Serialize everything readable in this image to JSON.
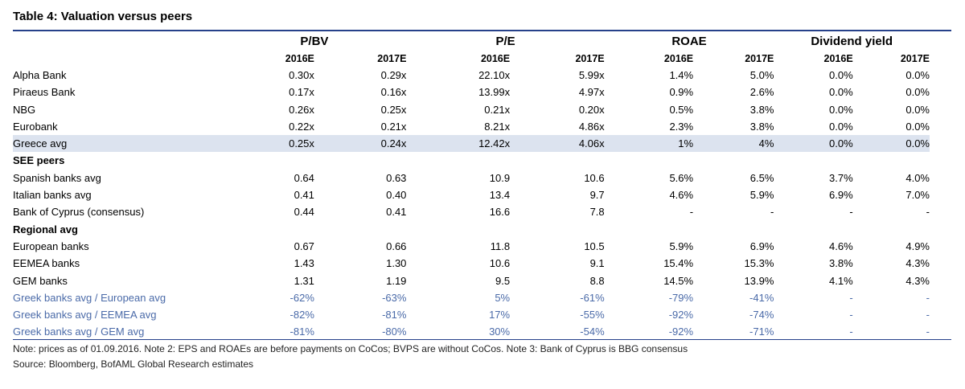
{
  "title": "Table 4: Valuation versus peers",
  "groups": [
    "P/BV",
    "P/E",
    "ROAE",
    "Dividend yield"
  ],
  "years": [
    "2016E",
    "2017E",
    "2016E",
    "2017E",
    "2016E",
    "2017E",
    "2016E",
    "2017E"
  ],
  "rows": [
    {
      "label": "Alpha Bank",
      "values": [
        "0.30x",
        "0.29x",
        "22.10x",
        "5.99x",
        "1.4%",
        "5.0%",
        "0.0%",
        "0.0%"
      ]
    },
    {
      "label": "Piraeus Bank",
      "values": [
        "0.17x",
        "0.16x",
        "13.99x",
        "4.97x",
        "0.9%",
        "2.6%",
        "0.0%",
        "0.0%"
      ]
    },
    {
      "label": "NBG",
      "values": [
        "0.26x",
        "0.25x",
        "0.21x",
        "0.20x",
        "0.5%",
        "3.8%",
        "0.0%",
        "0.0%"
      ]
    },
    {
      "label": "Eurobank",
      "values": [
        "0.22x",
        "0.21x",
        "8.21x",
        "4.86x",
        "2.3%",
        "3.8%",
        "0.0%",
        "0.0%"
      ]
    },
    {
      "label": "Greece avg",
      "values": [
        "0.25x",
        "0.24x",
        "12.42x",
        "4.06x",
        "1%",
        "4%",
        "0.0%",
        "0.0%"
      ]
    },
    {
      "label": "SEE peers",
      "values": [
        "",
        "",
        "",
        "",
        "",
        "",
        "",
        ""
      ]
    },
    {
      "label": "Spanish banks avg",
      "values": [
        "0.64",
        "0.63",
        "10.9",
        "10.6",
        "5.6%",
        "6.5%",
        "3.7%",
        "4.0%"
      ]
    },
    {
      "label": "Italian banks avg",
      "values": [
        "0.41",
        "0.40",
        "13.4",
        "9.7",
        "4.6%",
        "5.9%",
        "6.9%",
        "7.0%"
      ]
    },
    {
      "label": "Bank of Cyprus (consensus)",
      "values": [
        "0.44",
        "0.41",
        "16.6",
        "7.8",
        "-",
        "-",
        "-",
        "-"
      ]
    },
    {
      "label": "Regional avg",
      "values": [
        "",
        "",
        "",
        "",
        "",
        "",
        "",
        ""
      ]
    },
    {
      "label": "European banks",
      "values": [
        "0.67",
        "0.66",
        "11.8",
        "10.5",
        "5.9%",
        "6.9%",
        "4.6%",
        "4.9%"
      ]
    },
    {
      "label": "EEMEA banks",
      "values": [
        "1.43",
        "1.30",
        "10.6",
        "9.1",
        "15.4%",
        "15.3%",
        "3.8%",
        "4.3%"
      ]
    },
    {
      "label": "GEM banks",
      "values": [
        "1.31",
        "1.19",
        "9.5",
        "8.8",
        "14.5%",
        "13.9%",
        "4.1%",
        "4.3%"
      ]
    },
    {
      "label": "Greek banks avg / European avg",
      "values": [
        "-62%",
        "-63%",
        "5%",
        "-61%",
        "-79%",
        "-41%",
        "-",
        "-"
      ]
    },
    {
      "label": "Greek banks avg / EEMEA avg",
      "values": [
        "-82%",
        "-81%",
        "17%",
        "-55%",
        "-92%",
        "-74%",
        "-",
        "-"
      ]
    },
    {
      "label": "Greek banks avg / GEM avg",
      "values": [
        "-81%",
        "-80%",
        "30%",
        "-54%",
        "-92%",
        "-71%",
        "-",
        "-"
      ]
    }
  ],
  "notes": [
    "Note: prices as of 01.09.2016. Note 2: EPS and ROAEs are before payments on CoCos; BVPS are without CoCos. Note 3: Bank of Cyprus is BBG consensus",
    "Source: Bloomberg, BofAML Global Research estimates"
  ],
  "colors": {
    "title_rule": "#26418a",
    "avg_highlight": "#dce3ef",
    "ratio_text": "#4a6aa8"
  }
}
